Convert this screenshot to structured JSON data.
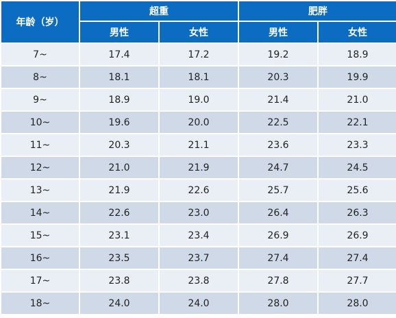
{
  "header": {
    "age_label": "年龄（岁）",
    "group_overweight": "超重",
    "group_obese": "肥胖",
    "sub_headers": [
      "男性",
      "女性",
      "男性",
      "女性"
    ]
  },
  "rows": [
    {
      "age": "7~",
      "values": [
        "17.4",
        "17.2",
        "19.2",
        "18.9"
      ]
    },
    {
      "age": "8~",
      "values": [
        "18.1",
        "18.1",
        "20.3",
        "19.9"
      ]
    },
    {
      "age": "9~",
      "values": [
        "18.9",
        "19.0",
        "21.4",
        "21.0"
      ]
    },
    {
      "age": "10~",
      "values": [
        "19.6",
        "20.0",
        "22.5",
        "22.1"
      ]
    },
    {
      "age": "11~",
      "values": [
        "20.3",
        "21.1",
        "23.6",
        "23.3"
      ]
    },
    {
      "age": "12~",
      "values": [
        "21.0",
        "21.9",
        "24.7",
        "24.5"
      ]
    },
    {
      "age": "13~",
      "values": [
        "21.9",
        "22.6",
        "25.7",
        "25.6"
      ]
    },
    {
      "age": "14~",
      "values": [
        "22.6",
        "23.0",
        "26.4",
        "26.3"
      ]
    },
    {
      "age": "15~",
      "values": [
        "23.1",
        "23.4",
        "26.9",
        "26.9"
      ]
    },
    {
      "age": "16~",
      "values": [
        "23.5",
        "23.7",
        "27.4",
        "27.4"
      ]
    },
    {
      "age": "17~",
      "values": [
        "23.8",
        "23.8",
        "27.8",
        "27.7"
      ]
    },
    {
      "age": "18~",
      "values": [
        "24.0",
        "24.0",
        "28.0",
        "28.0"
      ]
    }
  ],
  "colors": {
    "header_bg": "#0b6cc1",
    "row_light": "#eaeff5",
    "row_dark": "#d0d9e7"
  }
}
